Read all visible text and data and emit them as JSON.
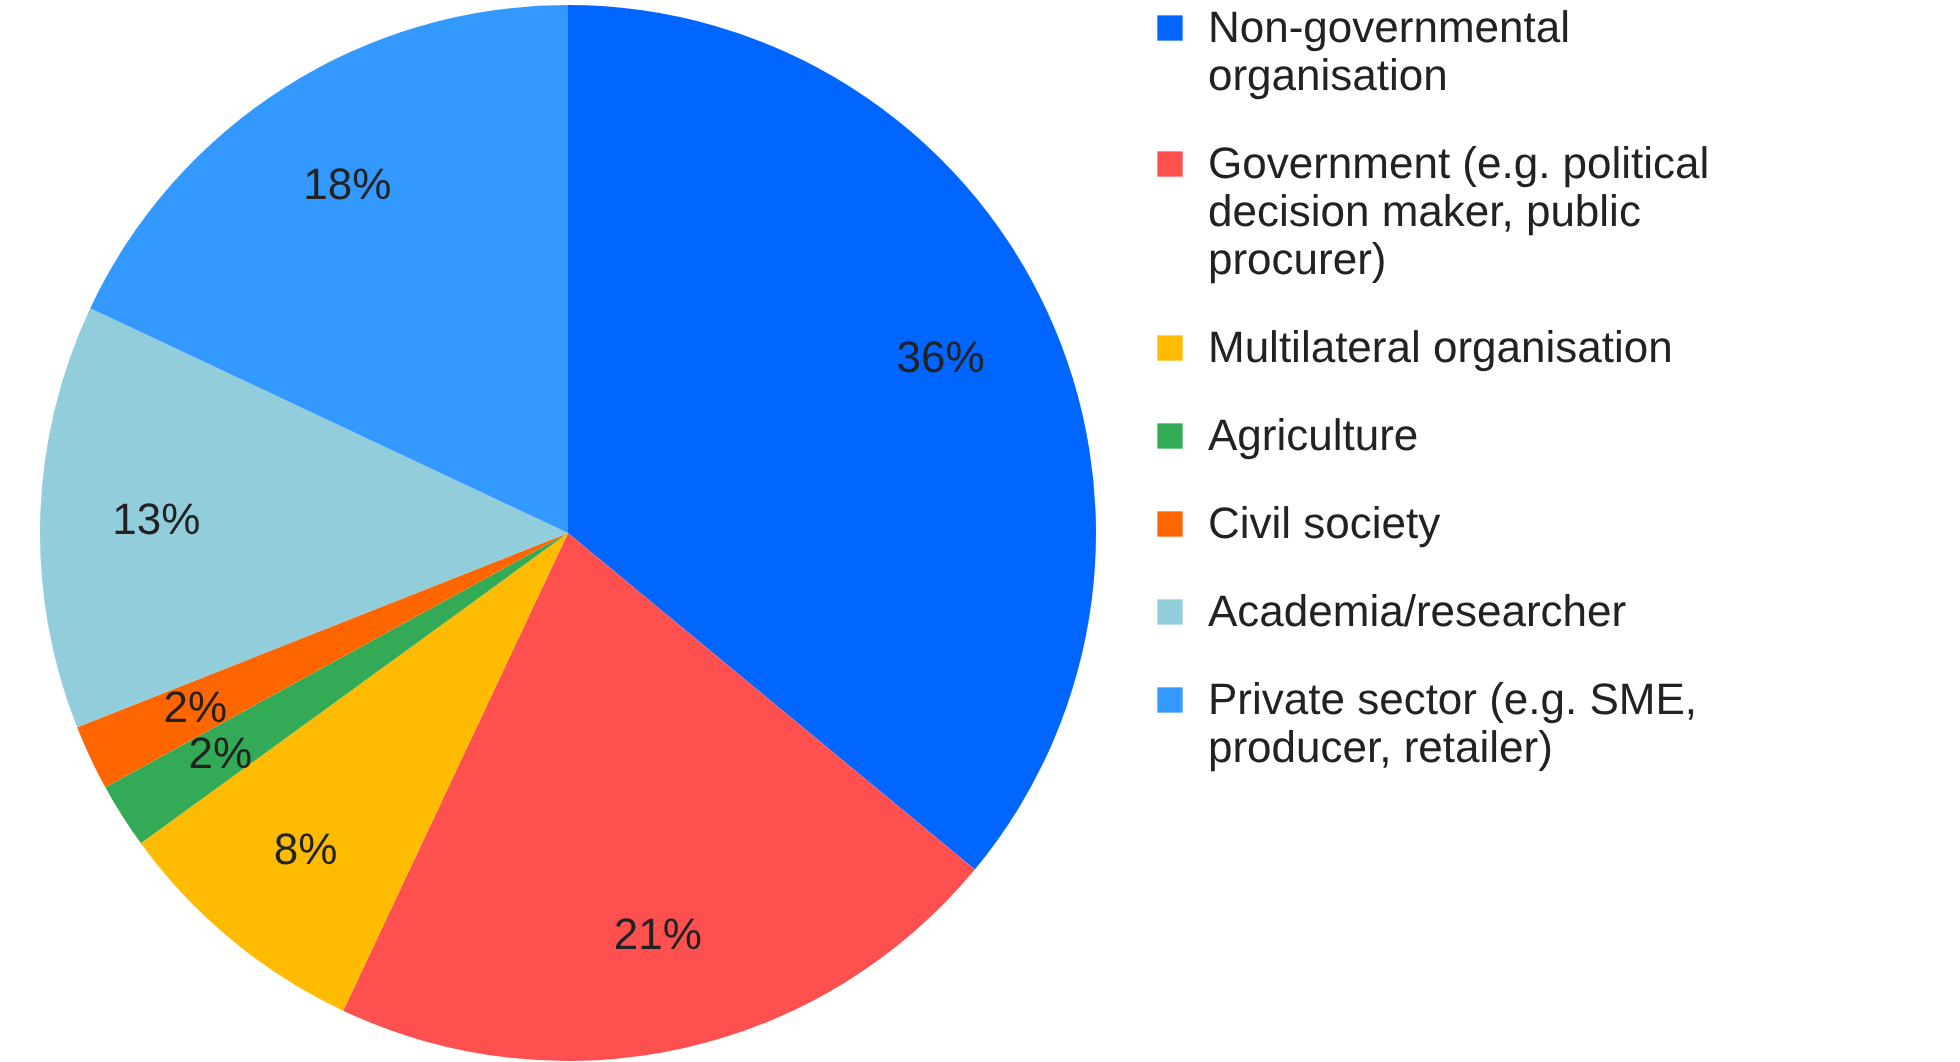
{
  "chart_data": {
    "type": "pie",
    "categories": [
      "Non-governmental organisation",
      "Government (e.g. political decision maker, public procurer)",
      "Multilateral organisation",
      "Agriculture",
      "Civil society",
      "Academia/researcher",
      "Private sector (e.g. SME, producer, retailer)"
    ],
    "values": [
      36,
      21,
      8,
      2,
      2,
      13,
      18
    ],
    "value_labels": [
      "36%",
      "21%",
      "8%",
      "2%",
      "2%",
      "13%",
      "18%"
    ],
    "colors": [
      "#0066ff",
      "#ff5050",
      "#ffbb00",
      "#33aa55",
      "#ff6600",
      "#92cddc",
      "#3399ff"
    ],
    "legend": "right"
  }
}
